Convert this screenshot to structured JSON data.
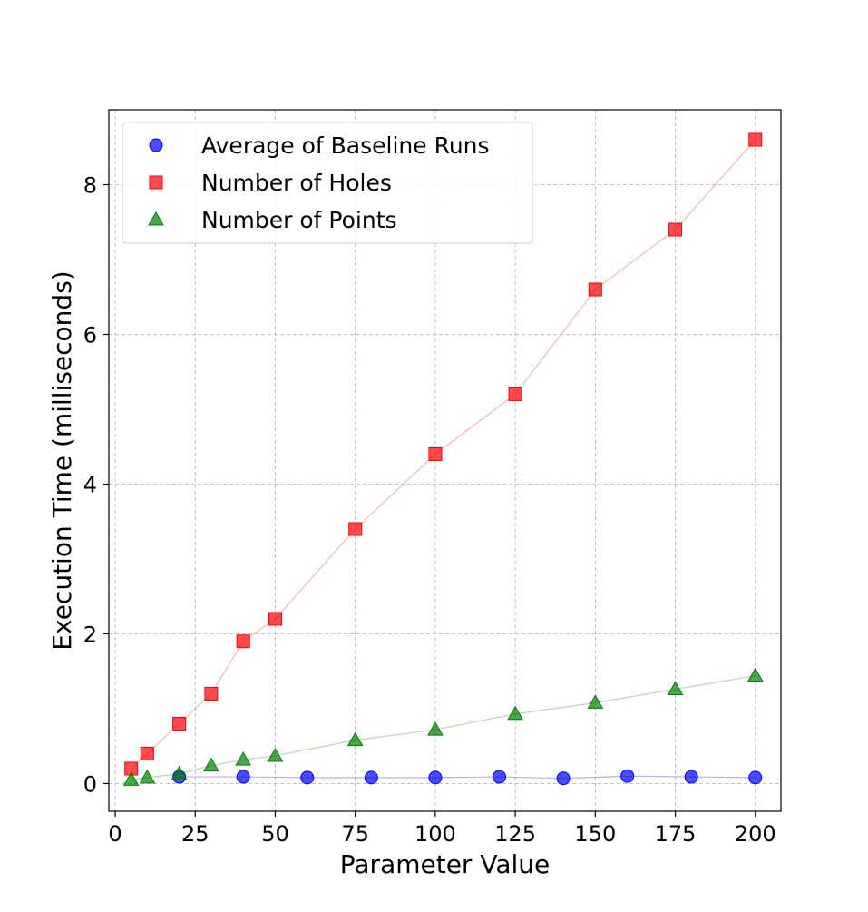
{
  "chart_data": {
    "type": "scatter",
    "title": "",
    "xlabel": "Parameter Value",
    "ylabel": "Execution Time (milliseconds)",
    "xlim": [
      -2,
      208
    ],
    "ylim": [
      -0.37,
      9.0
    ],
    "xticks": [
      0,
      25,
      50,
      75,
      100,
      125,
      150,
      175,
      200
    ],
    "yticks": [
      0,
      2,
      4,
      6,
      8
    ],
    "grid": true,
    "legend_position": "upper-left",
    "series": [
      {
        "name": "Average of Baseline Runs",
        "marker": "circle",
        "color": "#0000ff",
        "x": [
          20,
          40,
          60,
          80,
          100,
          120,
          140,
          160,
          180,
          200
        ],
        "y": [
          0.09,
          0.09,
          0.08,
          0.08,
          0.08,
          0.09,
          0.07,
          0.1,
          0.09,
          0.08
        ]
      },
      {
        "name": "Number of Holes",
        "marker": "square",
        "color": "#ff0000",
        "x": [
          5,
          10,
          20,
          30,
          40,
          50,
          75,
          100,
          125,
          150,
          175,
          200
        ],
        "y": [
          0.2,
          0.4,
          0.8,
          1.2,
          1.9,
          2.2,
          3.4,
          4.4,
          5.2,
          6.6,
          7.4,
          8.6
        ]
      },
      {
        "name": "Number of Points",
        "marker": "triangle",
        "color": "#008000",
        "x": [
          5,
          10,
          20,
          30,
          40,
          50,
          75,
          100,
          125,
          150,
          175,
          200
        ],
        "y": [
          0.05,
          0.08,
          0.13,
          0.24,
          0.32,
          0.37,
          0.58,
          0.72,
          0.93,
          1.08,
          1.26,
          1.44
        ]
      }
    ]
  }
}
